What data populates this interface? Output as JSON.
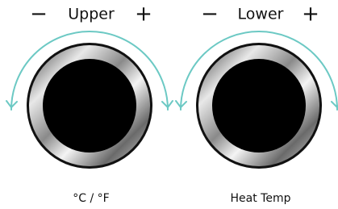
{
  "knobs": [
    {
      "minus": "−",
      "label": "Upper",
      "plus": "+",
      "caption": "°C / °F"
    },
    {
      "minus": "−",
      "label": "Lower",
      "plus": "+",
      "caption": "Heat Temp"
    }
  ]
}
